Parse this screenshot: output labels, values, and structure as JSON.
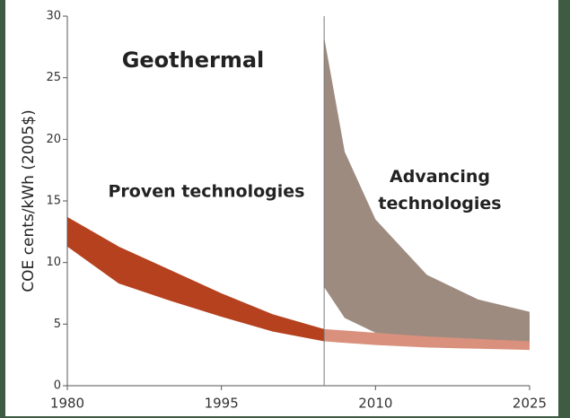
{
  "chart_data": {
    "type": "band",
    "title": "Geothermal",
    "y_label": "COE cents/kWh (2005$)",
    "annotations": [
      "Proven technologies",
      "Advancing technologies"
    ],
    "xlim": [
      1980,
      2025
    ],
    "xticks": [
      1980,
      1995,
      2010,
      2025
    ],
    "ylim": [
      0,
      30
    ],
    "yticks": [
      0,
      5,
      10,
      15,
      20,
      25,
      30
    ],
    "divider_x": 2005,
    "series": [
      {
        "color": "#b5411f",
        "x": [
          1980,
          1985,
          1990,
          1995,
          2000,
          2005
        ],
        "low": [
          11.3,
          8.3,
          6.9,
          5.6,
          4.4,
          3.6
        ],
        "high": [
          13.7,
          11.3,
          9.4,
          7.5,
          5.8,
          4.6
        ]
      },
      {
        "color": "#d9907c",
        "x": [
          2005,
          2010,
          2015,
          2020,
          2025
        ],
        "low": [
          3.6,
          3.3,
          3.1,
          3.0,
          2.9
        ],
        "high": [
          4.6,
          4.3,
          4.1,
          4.0,
          3.9
        ]
      },
      {
        "color": "#9e8b80",
        "x": [
          2005,
          2007,
          2010,
          2015,
          2020,
          2025
        ],
        "low": [
          8.0,
          5.5,
          4.3,
          4.0,
          3.8,
          3.6
        ],
        "high": [
          28.3,
          19.0,
          13.5,
          9.0,
          7.0,
          6.0
        ]
      }
    ]
  }
}
